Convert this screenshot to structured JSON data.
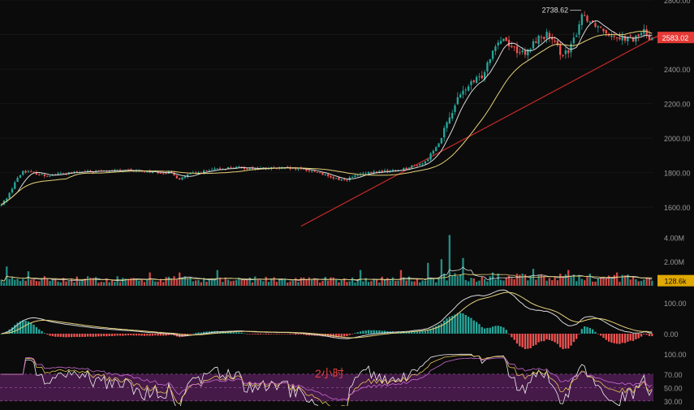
{
  "chart_data": {
    "type": "candlestick",
    "interval_label": "2小时",
    "colors": {
      "background": "#0b0b0b",
      "up": "#26a69a",
      "down": "#ef5350",
      "ma_fast": "#d8d8d8",
      "ma_slow": "#e6d27a",
      "trendline": "#c62828",
      "last_price_bg": "#e53935",
      "last_volume_bg": "#e0a800",
      "rsi_band": "#5a1f5e",
      "axis_text": "#9a9a9a"
    },
    "price": {
      "ylim": [
        1460,
        2800
      ],
      "ticks": [
        1600,
        1800,
        2000,
        2200,
        2400,
        2600,
        2800
      ],
      "tick_labels": [
        "1600.00",
        "1800.00",
        "2000.00",
        "2200.00",
        "2400.00",
        "2600.00",
        "2800.00"
      ],
      "high_label": "2738.62",
      "last_price": 2583.02,
      "last_price_label": "2583.02",
      "series": [
        {
          "name": "",
          "close_points": [
            [
              0,
              1612
            ],
            [
              3,
              1680
            ],
            [
              5,
              1745
            ],
            [
              8,
              1810
            ],
            [
              12,
              1800
            ],
            [
              16,
              1783
            ],
            [
              22,
              1795
            ],
            [
              28,
              1802
            ],
            [
              35,
              1808
            ],
            [
              45,
              1812
            ],
            [
              55,
              1806
            ],
            [
              62,
              1800
            ],
            [
              66,
              1765
            ],
            [
              70,
              1792
            ],
            [
              78,
              1815
            ],
            [
              85,
              1830
            ],
            [
              95,
              1825
            ],
            [
              105,
              1826
            ],
            [
              112,
              1818
            ],
            [
              118,
              1800
            ],
            [
              122,
              1768
            ],
            [
              127,
              1758
            ],
            [
              133,
              1790
            ],
            [
              140,
              1806
            ],
            [
              146,
              1813
            ],
            [
              151,
              1830
            ],
            [
              157,
              1860
            ],
            [
              163,
              2000
            ],
            [
              168,
              2200
            ],
            [
              172,
              2290
            ],
            [
              178,
              2360
            ],
            [
              183,
              2550
            ],
            [
              186,
              2580
            ],
            [
              189,
              2530
            ],
            [
              194,
              2480
            ],
            [
              198,
              2570
            ],
            [
              202,
              2600
            ],
            [
              207,
              2500
            ],
            [
              210,
              2490
            ],
            [
              213,
              2610
            ],
            [
              215,
              2720
            ],
            [
              218,
              2680
            ],
            [
              222,
              2640
            ],
            [
              226,
              2600
            ],
            [
              231,
              2580
            ],
            [
              234,
              2570
            ],
            [
              238,
              2620
            ],
            [
              240,
              2583
            ]
          ]
        }
      ],
      "trendline": [
        [
          111,
          1490
        ],
        [
          244,
          2600
        ]
      ]
    },
    "volume": {
      "ylim": [
        0,
        4500000
      ],
      "ticks": [
        2000000,
        4000000
      ],
      "tick_labels": [
        "2.00M",
        "4.00M"
      ],
      "last_value_label": "128.6k",
      "spikes": [
        [
          2,
          1.6
        ],
        [
          10,
          1.2
        ],
        [
          55,
          1.1
        ],
        [
          66,
          1.1
        ],
        [
          80,
          1.3
        ],
        [
          133,
          1.3
        ],
        [
          148,
          1.3
        ],
        [
          158,
          1.9
        ],
        [
          163,
          2.2
        ],
        [
          166,
          4.2
        ],
        [
          171,
          2.3
        ],
        [
          182,
          1.1
        ],
        [
          197,
          1.4
        ],
        [
          210,
          1.3
        ],
        [
          228,
          1.1
        ]
      ]
    },
    "macd": {
      "ylim": [
        -45,
        135
      ],
      "ticks": [
        0,
        100
      ],
      "tick_labels": [
        "0.00",
        "100.00"
      ]
    },
    "rsi": {
      "ylim": [
        25,
        105
      ],
      "band": [
        30,
        70
      ],
      "ticks": [
        30,
        50,
        70,
        100
      ],
      "tick_labels": [
        "30.00",
        "50.00",
        "70.00",
        "100.00"
      ]
    }
  }
}
